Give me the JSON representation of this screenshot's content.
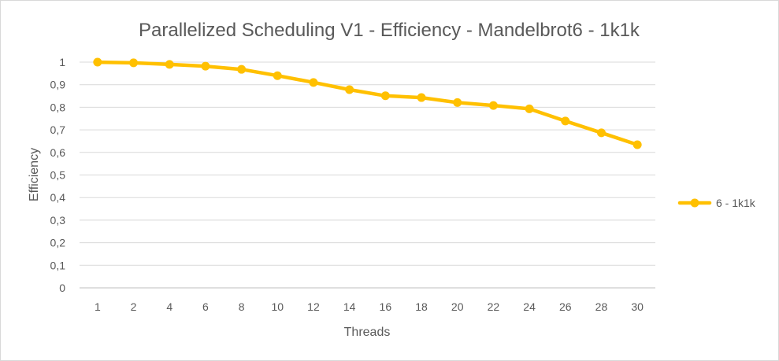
{
  "chart_data": {
    "type": "line",
    "title": "Parallelized Scheduling V1 - Efficiency - Mandelbrot6 - 1k1k",
    "xlabel": "Threads",
    "ylabel": "Efficiency",
    "categories": [
      "1",
      "2",
      "4",
      "6",
      "8",
      "10",
      "12",
      "14",
      "16",
      "18",
      "20",
      "22",
      "24",
      "26",
      "28",
      "30"
    ],
    "y_ticks": [
      "0",
      "0,1",
      "0,2",
      "0,3",
      "0,4",
      "0,5",
      "0,6",
      "0,7",
      "0,8",
      "0,9",
      "1"
    ],
    "ylim": [
      0,
      1
    ],
    "grid": true,
    "legend_position": "right",
    "series": [
      {
        "name": "6 - 1k1k",
        "color": "#ffc000",
        "values": [
          1.0,
          0.997,
          0.99,
          0.982,
          0.968,
          0.94,
          0.91,
          0.878,
          0.851,
          0.843,
          0.821,
          0.808,
          0.793,
          0.739,
          0.687,
          0.634
        ]
      }
    ]
  }
}
